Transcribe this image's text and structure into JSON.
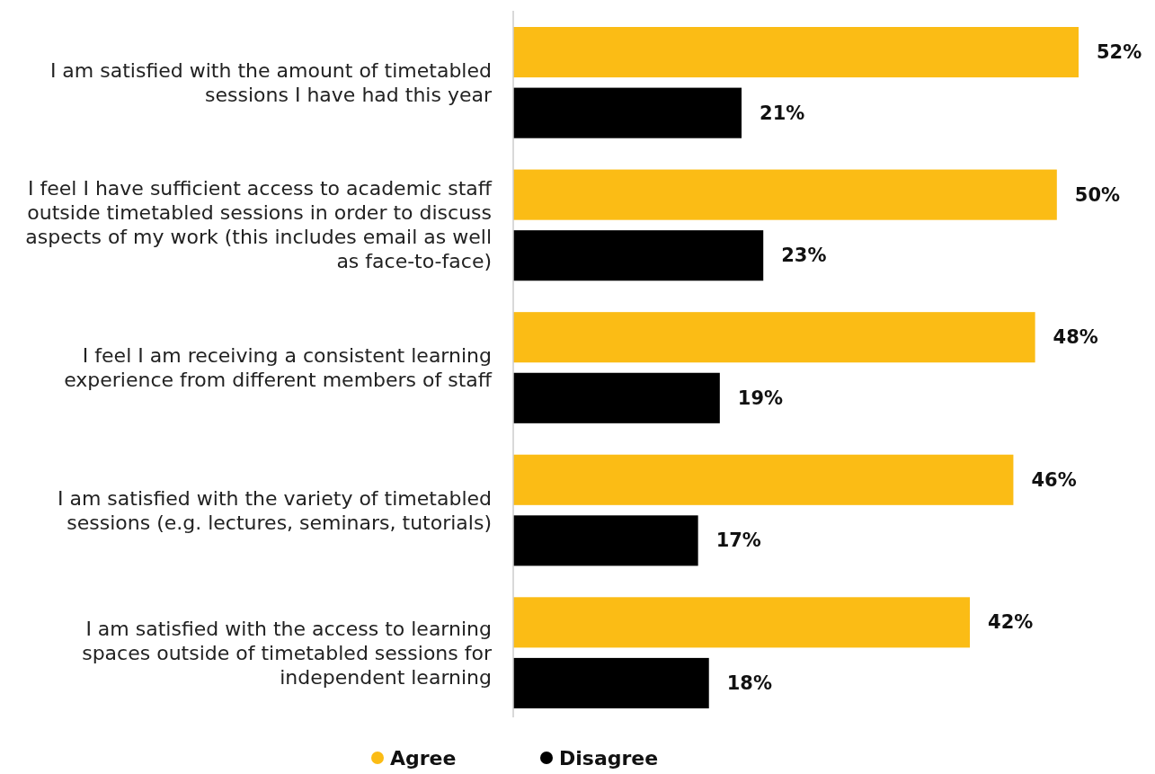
{
  "chart_data": {
    "type": "bar",
    "orientation": "horizontal",
    "legend": "bottom",
    "categories": [
      "I am satisfied with the amount of timetabled sessions I have had this year",
      "I feel I have sufficient access to academic staff outside timetabled sessions in order to discuss aspects of my work (this includes email as well as face-to-face)",
      "I feel I am receiving a consistent learning experience from different members of staff",
      "I am satisfied with the variety of timetabled sessions (e.g. lectures, seminars, tutorials)",
      "I am satisfied with the access to learning spaces outside of timetabled sessions for independent learning"
    ],
    "series": [
      {
        "name": "Agree",
        "color": "#fbbc15",
        "values": [
          52,
          50,
          48,
          46,
          42
        ],
        "value_labels": [
          "52%",
          "50%",
          "48%",
          "46%",
          "42%"
        ]
      },
      {
        "name": "Disagree",
        "color": "#000000",
        "values": [
          21,
          23,
          19,
          17,
          18
        ],
        "value_labels": [
          "21%",
          "23%",
          "19%",
          "17%",
          "18%"
        ]
      }
    ]
  }
}
